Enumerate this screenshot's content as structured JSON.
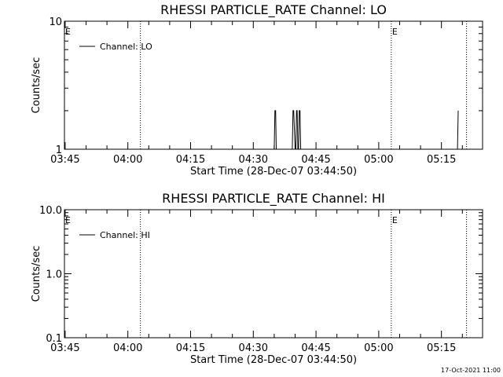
{
  "footer_timestamp": "17-Oct-2021 11:00",
  "chart_data": [
    {
      "type": "line",
      "title": "RHESSI PARTICLE_RATE Channel: LO",
      "xlabel": "Start Time (28-Dec-07 03:44:50)",
      "ylabel": "Counts/sec",
      "yscale": "log",
      "ylim": [
        1,
        10
      ],
      "yticks": [
        1,
        10
      ],
      "ytick_labels": [
        "1",
        "10"
      ],
      "xlim": [
        "03:44:50",
        "05:24:50"
      ],
      "xticks": [
        "03:45",
        "04:00",
        "04:15",
        "04:30",
        "04:45",
        "05:00",
        "05:15"
      ],
      "grid": false,
      "legend_position": "top-left",
      "series": [
        {
          "name": "Channel: LO",
          "x": [
            "04:35:00",
            "04:35:10",
            "04:35:20",
            "04:35:30",
            "04:39:20",
            "04:39:30",
            "04:39:40",
            "04:40:00",
            "04:40:10",
            "04:40:20",
            "04:40:30",
            "04:40:40",
            "04:40:50",
            "04:41:00",
            "04:41:10",
            "04:41:20",
            "05:18:50",
            "05:19:00"
          ],
          "y": [
            1,
            2,
            2,
            1,
            1,
            2,
            2,
            1,
            1,
            2,
            2,
            1,
            1,
            2,
            2,
            1,
            1,
            2
          ]
        }
      ],
      "event_lines": [
        {
          "label": "E",
          "x": "03:44:50"
        },
        {
          "label": "",
          "x": "04:03:00"
        },
        {
          "label": "E",
          "x": "05:03:00"
        },
        {
          "label": "",
          "x": "05:21:00"
        }
      ]
    },
    {
      "type": "line",
      "title": "RHESSI PARTICLE_RATE Channel: HI",
      "xlabel": "Start Time (28-Dec-07 03:44:50)",
      "ylabel": "Counts/sec",
      "yscale": "log",
      "ylim": [
        0.1,
        10
      ],
      "yticks": [
        0.1,
        1,
        10
      ],
      "ytick_labels": [
        "0.1",
        "1.0",
        "10.0"
      ],
      "xlim": [
        "03:44:50",
        "05:24:50"
      ],
      "xticks": [
        "03:45",
        "04:00",
        "04:15",
        "04:30",
        "04:45",
        "05:00",
        "05:15"
      ],
      "grid": false,
      "legend_position": "top-left",
      "series": [
        {
          "name": "Channel: HI",
          "x": [],
          "y": []
        }
      ],
      "event_lines": [
        {
          "label": "E",
          "x": "03:44:50"
        },
        {
          "label": "",
          "x": "04:03:00"
        },
        {
          "label": "E",
          "x": "05:03:00"
        },
        {
          "label": "",
          "x": "05:21:00"
        }
      ]
    }
  ]
}
